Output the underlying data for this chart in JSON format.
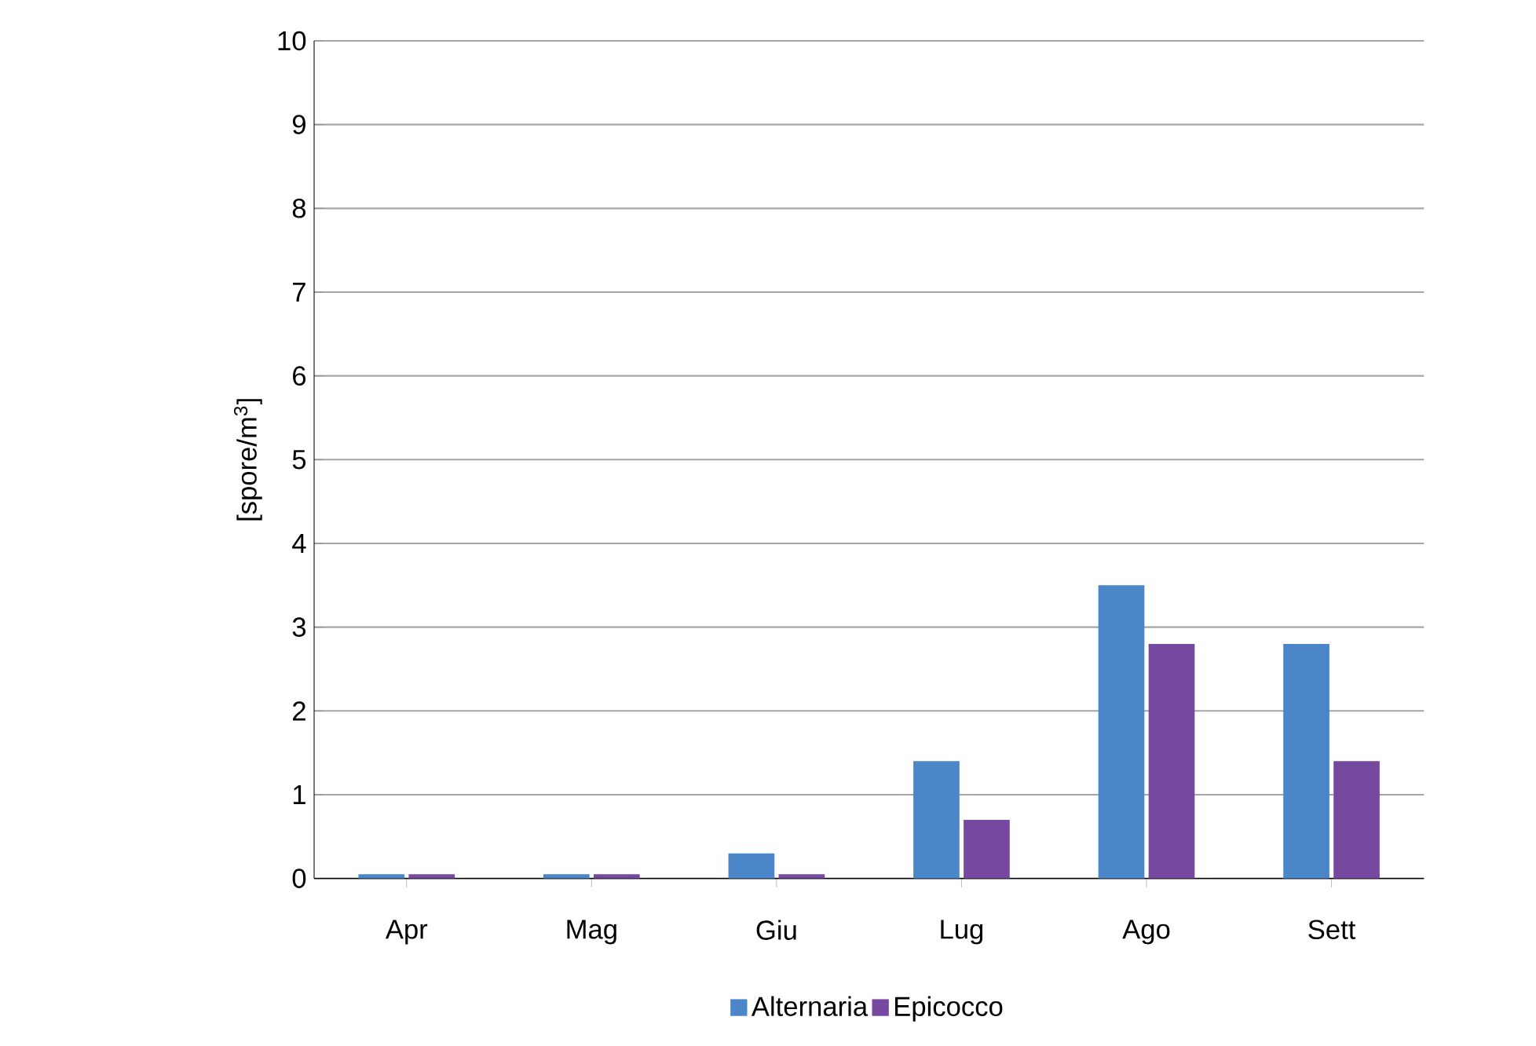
{
  "chart_data": {
    "type": "bar",
    "ylabel": "[spore/m$^{3}$]",
    "categories": [
      "Apr",
      "Mag",
      "Giu",
      "Lug",
      "Ago",
      "Sett"
    ],
    "series": [
      {
        "name": "Alternaria",
        "color": "#4a86c8",
        "values": [
          0.05,
          0.05,
          0.3,
          1.4,
          3.5,
          2.8
        ]
      },
      {
        "name": "Epicocco",
        "color": "#7649a0",
        "values": [
          0.05,
          0.05,
          0.05,
          0.7,
          2.8,
          1.4
        ]
      }
    ],
    "ylim": [
      0,
      10
    ],
    "yticks": [
      0,
      1,
      2,
      3,
      4,
      5,
      6,
      7,
      8,
      9,
      10
    ],
    "grid": "y",
    "legend": "bottom"
  }
}
